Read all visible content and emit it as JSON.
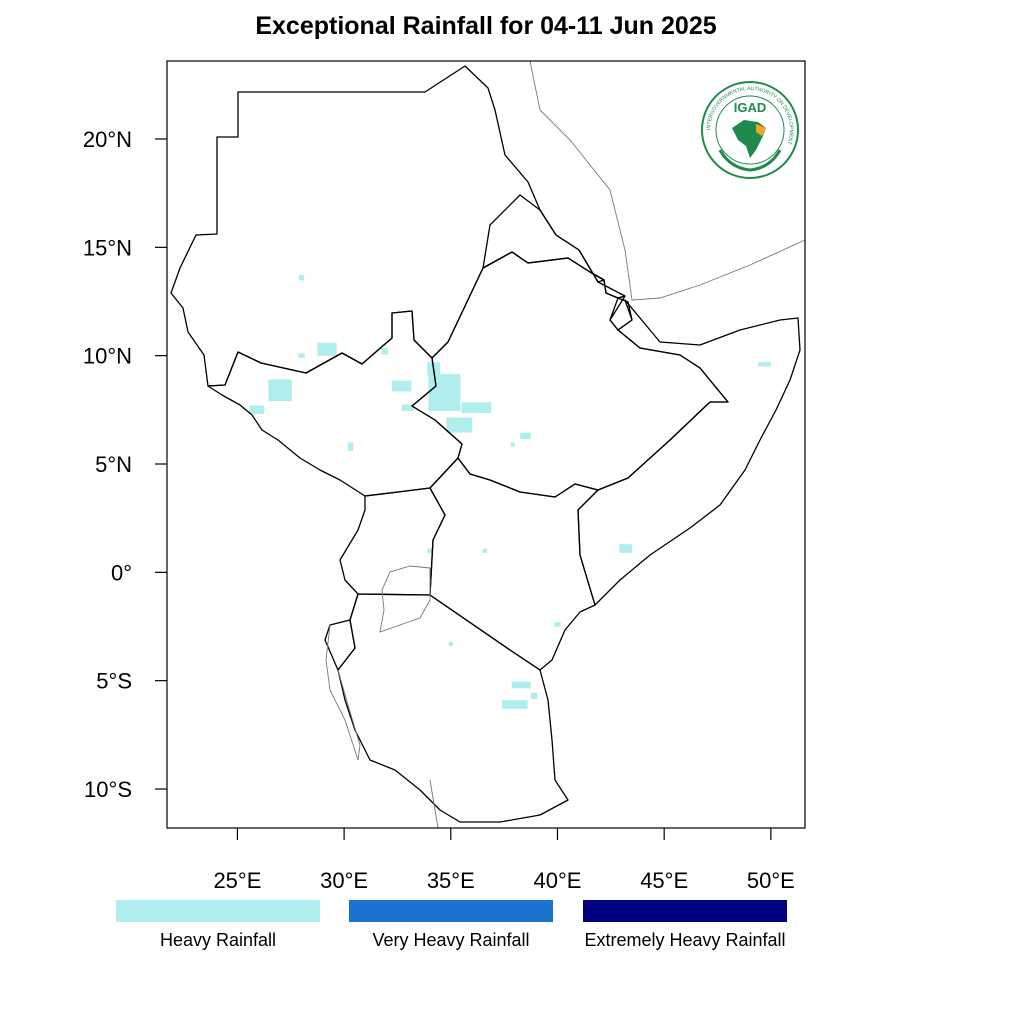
{
  "title": "Exceptional Rainfall for 04-11 Jun 2025",
  "map": {
    "lon_range": [
      21.7,
      51.6
    ],
    "lat_range": [
      -11.8,
      23.6
    ],
    "lon_ticks": [
      {
        "value": 25,
        "label": "25°E"
      },
      {
        "value": 30,
        "label": "30°E"
      },
      {
        "value": 35,
        "label": "35°E"
      },
      {
        "value": 40,
        "label": "40°E"
      },
      {
        "value": 45,
        "label": "45°E"
      },
      {
        "value": 50,
        "label": "50°E"
      }
    ],
    "lat_ticks": [
      {
        "value": 20,
        "label": "20°N"
      },
      {
        "value": 15,
        "label": "15°N"
      },
      {
        "value": 10,
        "label": "10°N"
      },
      {
        "value": 5,
        "label": "5°N"
      },
      {
        "value": 0,
        "label": "0°"
      },
      {
        "value": -5,
        "label": "5°S"
      },
      {
        "value": -10,
        "label": "10°S"
      }
    ]
  },
  "legend": [
    {
      "label": "Heavy Rainfall",
      "color": "#b0eeee"
    },
    {
      "label": "Very Heavy Rainfall",
      "color": "#1a73cf"
    },
    {
      "label": "Extremely Heavy Rainfall",
      "color": "#000080"
    }
  ],
  "logo": {
    "text": "IGAD",
    "ring_text": "INTERGOVERNMENTAL AUTHORITY ON DEVELOPMENT",
    "icon": "igad-logo-icon"
  },
  "heavy_rain_areas": [
    {
      "lon": 28.0,
      "lat": 13.6,
      "w": 0.25,
      "h": 0.25
    },
    {
      "lon": 29.2,
      "lat": 10.3,
      "w": 0.9,
      "h": 0.6
    },
    {
      "lon": 28.0,
      "lat": 10.0,
      "w": 0.3,
      "h": 0.2
    },
    {
      "lon": 31.9,
      "lat": 10.2,
      "w": 0.3,
      "h": 0.3
    },
    {
      "lon": 27.0,
      "lat": 8.4,
      "w": 1.1,
      "h": 1.0
    },
    {
      "lon": 25.9,
      "lat": 7.5,
      "w": 0.7,
      "h": 0.4
    },
    {
      "lon": 32.7,
      "lat": 8.6,
      "w": 0.9,
      "h": 0.5
    },
    {
      "lon": 34.7,
      "lat": 8.3,
      "w": 1.5,
      "h": 1.7
    },
    {
      "lon": 34.2,
      "lat": 9.4,
      "w": 0.6,
      "h": 0.6
    },
    {
      "lon": 35.4,
      "lat": 6.8,
      "w": 1.2,
      "h": 0.7
    },
    {
      "lon": 36.2,
      "lat": 7.6,
      "w": 1.4,
      "h": 0.5
    },
    {
      "lon": 33.0,
      "lat": 7.6,
      "w": 0.6,
      "h": 0.3
    },
    {
      "lon": 30.3,
      "lat": 5.8,
      "w": 0.25,
      "h": 0.4
    },
    {
      "lon": 38.5,
      "lat": 6.3,
      "w": 0.5,
      "h": 0.3
    },
    {
      "lon": 37.9,
      "lat": 5.9,
      "w": 0.2,
      "h": 0.2
    },
    {
      "lon": 43.2,
      "lat": 1.1,
      "w": 0.6,
      "h": 0.4
    },
    {
      "lon": 49.7,
      "lat": 9.6,
      "w": 0.6,
      "h": 0.2
    },
    {
      "lon": 36.6,
      "lat": 1.0,
      "w": 0.2,
      "h": 0.2
    },
    {
      "lon": 34.0,
      "lat": 1.0,
      "w": 0.2,
      "h": 0.2
    },
    {
      "lon": 38.3,
      "lat": -5.2,
      "w": 0.9,
      "h": 0.3
    },
    {
      "lon": 38.0,
      "lat": -6.1,
      "w": 1.2,
      "h": 0.4
    },
    {
      "lon": 38.9,
      "lat": -5.7,
      "w": 0.3,
      "h": 0.3
    },
    {
      "lon": 40.0,
      "lat": -2.4,
      "w": 0.3,
      "h": 0.2
    },
    {
      "lon": 35.0,
      "lat": -3.3,
      "w": 0.2,
      "h": 0.2
    }
  ]
}
